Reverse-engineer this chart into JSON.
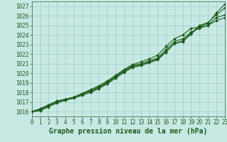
{
  "xlabel": "Graphe pression niveau de la mer (hPa)",
  "xlim": [
    0,
    23
  ],
  "ylim": [
    1015.5,
    1027.5
  ],
  "yticks": [
    1016,
    1017,
    1018,
    1019,
    1020,
    1021,
    1022,
    1023,
    1024,
    1025,
    1026,
    1027
  ],
  "xticks": [
    0,
    1,
    2,
    3,
    4,
    5,
    6,
    7,
    8,
    9,
    10,
    11,
    12,
    13,
    14,
    15,
    16,
    17,
    18,
    19,
    20,
    21,
    22,
    23
  ],
  "background_color": "#c8e8e4",
  "grid_color": "#90c8c0",
  "line_color": "#1a5c1a",
  "lines": [
    [
      1016.0,
      1016.1,
      1016.5,
      1016.9,
      1017.2,
      1017.4,
      1017.7,
      1018.0,
      1018.4,
      1018.9,
      1019.5,
      1020.1,
      1020.6,
      1020.8,
      1021.1,
      1021.4,
      1022.2,
      1023.1,
      1023.3,
      1024.1,
      1024.9,
      1025.2,
      1026.3,
      1027.2
    ],
    [
      1016.0,
      1016.2,
      1016.6,
      1017.0,
      1017.2,
      1017.5,
      1017.8,
      1018.1,
      1018.5,
      1019.0,
      1019.6,
      1020.2,
      1020.7,
      1020.9,
      1021.2,
      1021.5,
      1022.3,
      1023.1,
      1023.4,
      1024.2,
      1025.0,
      1025.3,
      1026.1,
      1026.8
    ],
    [
      1016.0,
      1016.3,
      1016.7,
      1017.1,
      1017.3,
      1017.5,
      1017.9,
      1018.2,
      1018.6,
      1019.1,
      1019.7,
      1020.3,
      1020.8,
      1021.0,
      1021.3,
      1021.6,
      1022.5,
      1023.3,
      1023.6,
      1024.3,
      1024.7,
      1025.0,
      1025.8,
      1026.1
    ],
    [
      1016.0,
      1016.3,
      1016.7,
      1017.1,
      1017.3,
      1017.5,
      1017.9,
      1018.3,
      1018.7,
      1019.2,
      1019.8,
      1020.4,
      1020.9,
      1021.2,
      1021.5,
      1021.9,
      1022.8,
      1023.6,
      1024.0,
      1024.7,
      1024.8,
      1025.0,
      1025.5,
      1025.8
    ]
  ],
  "marker": "D",
  "markersize": 2.0,
  "linewidth": 0.8,
  "xlabel_fontsize": 7,
  "tick_fontsize": 5.5
}
